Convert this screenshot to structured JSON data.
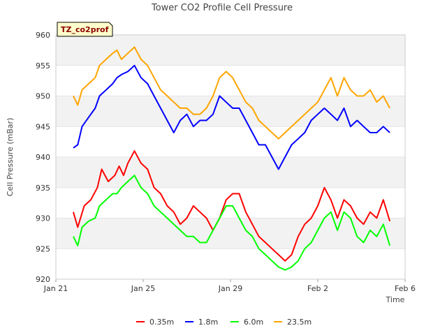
{
  "chart_data": {
    "type": "line",
    "title": "Tower CO2 Profile Cell Pressure",
    "xlabel": "Time",
    "ylabel": "Cell Pressure (mBar)",
    "site_badge": "TZ_co2prof",
    "xlim": [
      0,
      16
    ],
    "ylim": [
      920,
      960
    ],
    "x_ticks": [
      {
        "value": 0,
        "label": "Jan 21"
      },
      {
        "value": 4,
        "label": "Jan 25"
      },
      {
        "value": 8,
        "label": "Jan 29"
      },
      {
        "value": 12,
        "label": "Feb 2"
      },
      {
        "value": 16,
        "label": "Feb 6"
      }
    ],
    "y_ticks": [
      920,
      925,
      930,
      935,
      940,
      945,
      950,
      955,
      960
    ],
    "grid": "horizontal bands",
    "legend_position": "bottom",
    "series": [
      {
        "name": "0.35m",
        "color": "#ff0000",
        "x": [
          0.8,
          1.0,
          1.3,
          1.6,
          1.9,
          2.1,
          2.4,
          2.7,
          2.9,
          3.1,
          3.3,
          3.6,
          3.9,
          4.2,
          4.5,
          4.8,
          5.1,
          5.4,
          5.7,
          6.0,
          6.3,
          6.6,
          6.9,
          7.2,
          7.5,
          7.8,
          8.1,
          8.4,
          8.7,
          9.0,
          9.3,
          9.6,
          9.9,
          10.2,
          10.5,
          10.8,
          11.1,
          11.4,
          11.7,
          12.0,
          12.3,
          12.6,
          12.9,
          13.2,
          13.5,
          13.8,
          14.1,
          14.4,
          14.7,
          15.0,
          15.3
        ],
        "y": [
          931,
          928.5,
          932,
          933,
          935,
          938,
          936,
          937,
          938.5,
          937,
          939,
          941,
          939,
          938,
          935,
          934,
          932,
          931,
          929,
          930,
          932,
          931,
          930,
          928,
          930,
          933,
          934,
          934,
          931,
          929,
          927,
          926,
          925,
          924,
          923,
          924,
          927,
          929,
          930,
          932,
          935,
          933,
          930,
          933,
          932,
          930,
          929,
          931,
          930,
          933,
          929.5
        ]
      },
      {
        "name": "1.8m",
        "color": "#0000ff",
        "x": [
          0.8,
          1.0,
          1.2,
          1.5,
          1.8,
          2.0,
          2.3,
          2.6,
          2.8,
          3.0,
          3.3,
          3.6,
          3.9,
          4.2,
          4.5,
          4.8,
          5.1,
          5.4,
          5.7,
          6.0,
          6.3,
          6.6,
          6.9,
          7.2,
          7.5,
          7.8,
          8.1,
          8.4,
          8.7,
          9.0,
          9.3,
          9.6,
          9.9,
          10.2,
          10.5,
          10.8,
          11.1,
          11.4,
          11.7,
          12.0,
          12.3,
          12.6,
          12.9,
          13.2,
          13.5,
          13.8,
          14.1,
          14.4,
          14.7,
          15.0,
          15.3
        ],
        "y": [
          941.5,
          942,
          945,
          946.5,
          948,
          950,
          951,
          952,
          953,
          953.5,
          954,
          955,
          953,
          952,
          950,
          948,
          946,
          944,
          946,
          947,
          945,
          946,
          946,
          947,
          950,
          949,
          948,
          948,
          946,
          944,
          942,
          942,
          940,
          938,
          940,
          942,
          943,
          944,
          946,
          947,
          948,
          947,
          946,
          948,
          945,
          946,
          945,
          944,
          944,
          945,
          944
        ]
      },
      {
        "name": "6.0m",
        "color": "#00ff00",
        "x": [
          0.8,
          1.0,
          1.2,
          1.5,
          1.8,
          2.0,
          2.3,
          2.6,
          2.8,
          3.0,
          3.3,
          3.6,
          3.9,
          4.2,
          4.5,
          4.8,
          5.1,
          5.4,
          5.7,
          6.0,
          6.3,
          6.6,
          6.9,
          7.2,
          7.5,
          7.8,
          8.1,
          8.4,
          8.7,
          9.0,
          9.3,
          9.6,
          9.9,
          10.2,
          10.5,
          10.8,
          11.1,
          11.4,
          11.7,
          12.0,
          12.3,
          12.6,
          12.9,
          13.2,
          13.5,
          13.8,
          14.1,
          14.4,
          14.7,
          15.0,
          15.3
        ],
        "y": [
          927,
          925.5,
          928.5,
          929.5,
          930,
          932,
          933,
          934,
          934,
          935,
          936,
          937,
          935,
          934,
          932,
          931,
          930,
          929,
          928,
          927,
          927,
          926,
          926,
          928,
          930,
          932,
          932,
          930,
          928,
          927,
          925,
          924,
          923,
          922,
          921.5,
          922,
          923,
          925,
          926,
          928,
          930,
          931,
          928,
          931,
          930,
          927,
          926,
          928,
          927,
          929,
          925.5
        ]
      },
      {
        "name": "23.5m",
        "color": "#ffa500",
        "x": [
          0.8,
          1.0,
          1.2,
          1.5,
          1.8,
          2.0,
          2.3,
          2.6,
          2.8,
          3.0,
          3.3,
          3.6,
          3.9,
          4.2,
          4.5,
          4.8,
          5.1,
          5.4,
          5.7,
          6.0,
          6.3,
          6.6,
          6.9,
          7.2,
          7.5,
          7.8,
          8.1,
          8.4,
          8.7,
          9.0,
          9.3,
          9.6,
          9.9,
          10.2,
          10.5,
          10.8,
          11.1,
          11.4,
          11.7,
          12.0,
          12.3,
          12.6,
          12.9,
          13.2,
          13.5,
          13.8,
          14.1,
          14.4,
          14.7,
          15.0,
          15.3
        ],
        "y": [
          950,
          948.5,
          951,
          952,
          953,
          955,
          956,
          957,
          957.5,
          956,
          957,
          958,
          956,
          955,
          953,
          951,
          950,
          949,
          948,
          948,
          947,
          947,
          948,
          950,
          953,
          954,
          953,
          951,
          949,
          948,
          946,
          945,
          944,
          943,
          944,
          945,
          946,
          947,
          948,
          949,
          951,
          953,
          950,
          953,
          951,
          950,
          950,
          951,
          949,
          950,
          948
        ]
      }
    ]
  }
}
